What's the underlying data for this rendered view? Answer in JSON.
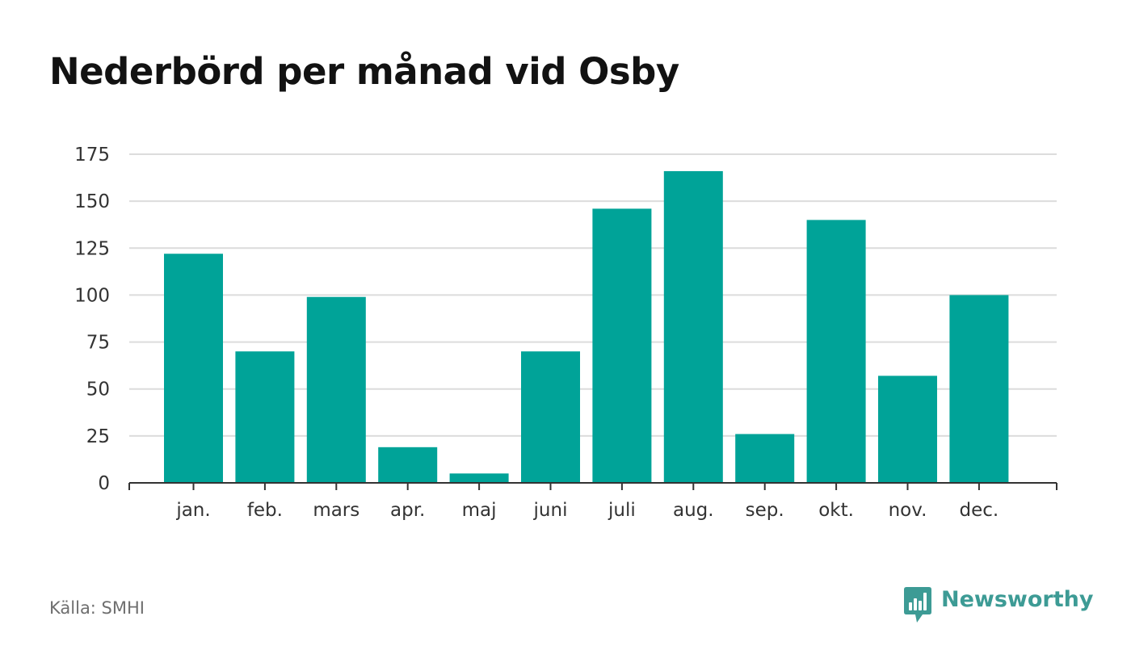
{
  "title": "Nederbörd per månad vid Osby",
  "source": "Källa: SMHI",
  "brand": {
    "name": "Newsworthy",
    "icon": "newsworthy-logo-icon",
    "color": "#3d9b95"
  },
  "colors": {
    "bar": "#00a398",
    "grid": "#dcdcdc",
    "axis": "#333333",
    "tick_text": "#333333"
  },
  "chart_data": {
    "type": "bar",
    "title": "Nederbörd per månad vid Osby",
    "xlabel": "",
    "ylabel": "",
    "categories": [
      "jan.",
      "feb.",
      "mars",
      "apr.",
      "maj",
      "juni",
      "juli",
      "aug.",
      "sep.",
      "okt.",
      "nov.",
      "dec."
    ],
    "values": [
      122,
      70,
      99,
      19,
      5,
      70,
      146,
      166,
      26,
      140,
      57,
      100
    ],
    "ylim": [
      0,
      175
    ],
    "yticks": [
      0,
      25,
      50,
      75,
      100,
      125,
      150,
      175
    ],
    "grid": true,
    "legend": "none"
  }
}
